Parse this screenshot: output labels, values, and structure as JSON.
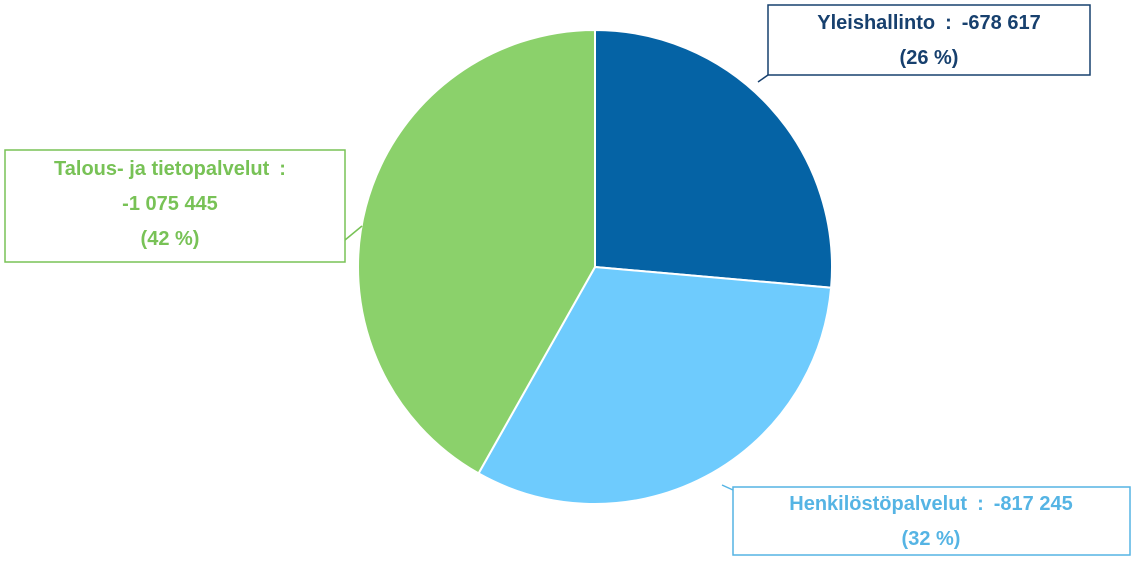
{
  "chart_data": {
    "type": "pie",
    "categories": [
      "Yleishallinto",
      "Henkilöstöpalvelut",
      "Talous- ja tietopalvelut"
    ],
    "values": [
      -678617,
      -817245,
      -1075445
    ],
    "value_labels": [
      "-678 617",
      "-817 245",
      "-1 075 445"
    ],
    "percentages": [
      26,
      32,
      42
    ],
    "percentage_labels": [
      "(26 %)",
      "(32 %)",
      "(42 %)"
    ],
    "separator": ":",
    "colors": [
      "#0563a5",
      "#6ecbfd",
      "#8bd16b"
    ],
    "label_colors": [
      "#17406e",
      "#55b4e4",
      "#78c256"
    ]
  }
}
